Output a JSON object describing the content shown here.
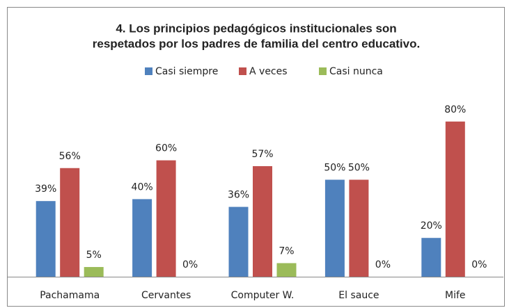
{
  "chart_data": {
    "type": "bar",
    "title": [
      "4. Los principios pedagógicos institucionales son",
      "respetados por los padres de familia del centro educativo."
    ],
    "categories": [
      "Pachamama",
      "Cervantes",
      "Computer W.",
      "El sauce",
      "Mife"
    ],
    "series": [
      {
        "name": "Casi siempre",
        "color": "#4f81bd",
        "values": [
          39,
          40,
          36,
          50,
          20
        ],
        "value_labels": [
          "39%",
          "40%",
          "36%",
          "50%",
          "20%"
        ]
      },
      {
        "name": "A veces",
        "color": "#c0504d",
        "values": [
          56,
          60,
          57,
          50,
          80
        ],
        "value_labels": [
          "56%",
          "60%",
          "57%",
          "50%",
          "80%"
        ]
      },
      {
        "name": "Casi nunca",
        "color": "#9bbb59",
        "values": [
          5,
          0,
          7,
          0,
          0
        ],
        "value_labels": [
          "5%",
          "0%",
          "7%",
          "0%",
          "0%"
        ]
      }
    ],
    "legend": "top"
  }
}
